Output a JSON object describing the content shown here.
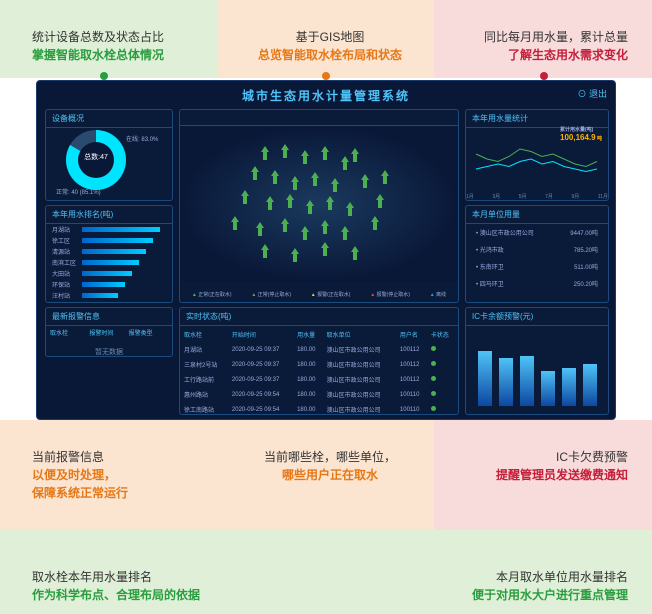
{
  "background_bands": {
    "orange": "#fbe4d0",
    "green": "#e0f0d8",
    "red": "#f8dcdc"
  },
  "callouts": {
    "c1": {
      "line1": "统计设备总数及状态占比",
      "line2": "掌握智能取水栓总体情况",
      "color": "#2a9d3f"
    },
    "c2": {
      "line1": "基于GIS地图",
      "line2": "总览智能取水栓布局和状态",
      "color": "#e67817"
    },
    "c3": {
      "line1": "同比每月用水量，累计总量",
      "line2": "了解生态用水需求变化",
      "color": "#c41e3a"
    },
    "c4": {
      "line1": "当前报警信息",
      "line2": "以便及时处理，\n保障系统正常运行",
      "color": "#e67817"
    },
    "c5": {
      "line1": "当前哪些栓，哪些单位，",
      "line2": "哪些用户正在取水",
      "color": "#e67817"
    },
    "c6": {
      "line1": "IC卡欠费预警",
      "line2": "提醒管理员发送缴费通知",
      "color": "#c41e3a"
    },
    "c7": {
      "line1": "取水栓本年用水量排名",
      "line2": "作为科学布点、合理布局的依据",
      "color": "#2a9d3f"
    },
    "c8": {
      "line1": "本月取水单位用水量排名",
      "line2": "便于对用水大户进行重点管理",
      "color": "#2a9d3f"
    }
  },
  "dashboard": {
    "title": "城市生态用水计量管理系统",
    "logout": "⊙ 退出",
    "bg_color": "#0a1838",
    "border_color": "#1a3a6e",
    "accent_color": "#4fc3f7"
  },
  "donut_panel": {
    "title": "设备概况",
    "center_label": "总数:47",
    "online_pct": "83.0%",
    "online_label": "在线",
    "legend": "正常: 40 (85.1%)",
    "colors": {
      "online": "#00e5ff",
      "offline": "#2a4a6e"
    }
  },
  "bars_panel": {
    "title": "本年用水排名(吨)",
    "rows": [
      {
        "label": "月湖站",
        "value": 88
      },
      {
        "label": "徐工区",
        "value": 80
      },
      {
        "label": "清源站",
        "value": 72
      },
      {
        "label": "南滨工区",
        "value": 64
      },
      {
        "label": "大田站",
        "value": 56
      },
      {
        "label": "环保站",
        "value": 48
      },
      {
        "label": "汪村站",
        "value": 40
      }
    ],
    "max": 90,
    "bar_gradient": [
      "#0066cc",
      "#00ccff"
    ]
  },
  "alarm_panel": {
    "title": "最新报警信息",
    "headers": [
      "取水栓",
      "报警时间",
      "报警类型"
    ],
    "empty": "暂无数据"
  },
  "map_panel": {
    "title": "",
    "legend": [
      {
        "label": "正常(正在取水)",
        "cls": "leg-green"
      },
      {
        "label": "正常(停止取水)",
        "cls": "leg-green"
      },
      {
        "label": "报警(正在取水)",
        "cls": "leg-yellow"
      },
      {
        "label": "报警(停止取水)",
        "cls": "leg-red"
      },
      {
        "label": "离线",
        "cls": "leg-blue"
      }
    ],
    "trees": [
      [
        80,
        20
      ],
      [
        100,
        18
      ],
      [
        120,
        24
      ],
      [
        140,
        20
      ],
      [
        160,
        30
      ],
      [
        170,
        22
      ],
      [
        70,
        40
      ],
      [
        90,
        44
      ],
      [
        110,
        50
      ],
      [
        130,
        46
      ],
      [
        150,
        52
      ],
      [
        180,
        48
      ],
      [
        200,
        44
      ],
      [
        60,
        64
      ],
      [
        85,
        70
      ],
      [
        105,
        68
      ],
      [
        125,
        74
      ],
      [
        145,
        70
      ],
      [
        165,
        76
      ],
      [
        195,
        68
      ],
      [
        50,
        90
      ],
      [
        75,
        96
      ],
      [
        100,
        92
      ],
      [
        120,
        100
      ],
      [
        140,
        94
      ],
      [
        160,
        100
      ],
      [
        190,
        90
      ],
      [
        80,
        118
      ],
      [
        110,
        122
      ],
      [
        140,
        116
      ],
      [
        170,
        120
      ]
    ],
    "tree_color": "#4caf50"
  },
  "table_panel": {
    "title": "实时状态(吨)",
    "columns": [
      "取水栓",
      "开始时间",
      "用水量",
      "取水单位",
      "用户名",
      "卡状态"
    ],
    "rows": [
      [
        "月湖站",
        "2020-09-25 09:37",
        "180.00",
        "澳山区市政公用公司",
        "100112",
        "●"
      ],
      [
        "三泉村2号站",
        "2020-09-25 09:37",
        "180.00",
        "澳山区市政公用公司",
        "100112",
        "●"
      ],
      [
        "工行路站前",
        "2020-09-25 09:37",
        "180.00",
        "澳山区市政公用公司",
        "100112",
        "●"
      ],
      [
        "惠州路站",
        "2020-09-25 09:54",
        "180.00",
        "澳山区市政公用公司",
        "100110",
        "●"
      ],
      [
        "徐工南路站",
        "2020-09-25 09:54",
        "180.00",
        "澳山区市政公用公司",
        "100110",
        "●"
      ]
    ]
  },
  "line_panel": {
    "title": "本年用水量统计",
    "total_label": "累计用水量(吨)",
    "total_value": "100,164.9",
    "months": [
      "1月",
      "2月",
      "3月",
      "4月",
      "5月",
      "6月",
      "7月",
      "8月",
      "9月",
      "10月",
      "11月",
      "12月"
    ],
    "series": [
      {
        "color": "#4caf50",
        "values": [
          60,
          50,
          45,
          55,
          70,
          65,
          55,
          60,
          50,
          40,
          35,
          45
        ]
      },
      {
        "color": "#00e5ff",
        "values": [
          30,
          35,
          40,
          35,
          45,
          50,
          40,
          45,
          35,
          30,
          25,
          30
        ]
      }
    ],
    "ylim": [
      0,
      80
    ]
  },
  "rank_panel": {
    "title": "本月单位用量",
    "items": [
      {
        "label": "澳山区市政公用公司",
        "value": "9447.00吨"
      },
      {
        "label": "光鸿市政",
        "value": "785.20吨"
      },
      {
        "label": "东南环卫",
        "value": "511.00吨"
      },
      {
        "label": "四马环卫",
        "value": "250.20吨"
      }
    ]
  },
  "col_panel": {
    "title": "IC卡余额预警(元)",
    "bars": [
      55,
      48,
      50,
      35,
      38,
      42
    ],
    "max": 70,
    "bar_gradient": [
      "#4fc3f7",
      "#0d47a1"
    ]
  }
}
